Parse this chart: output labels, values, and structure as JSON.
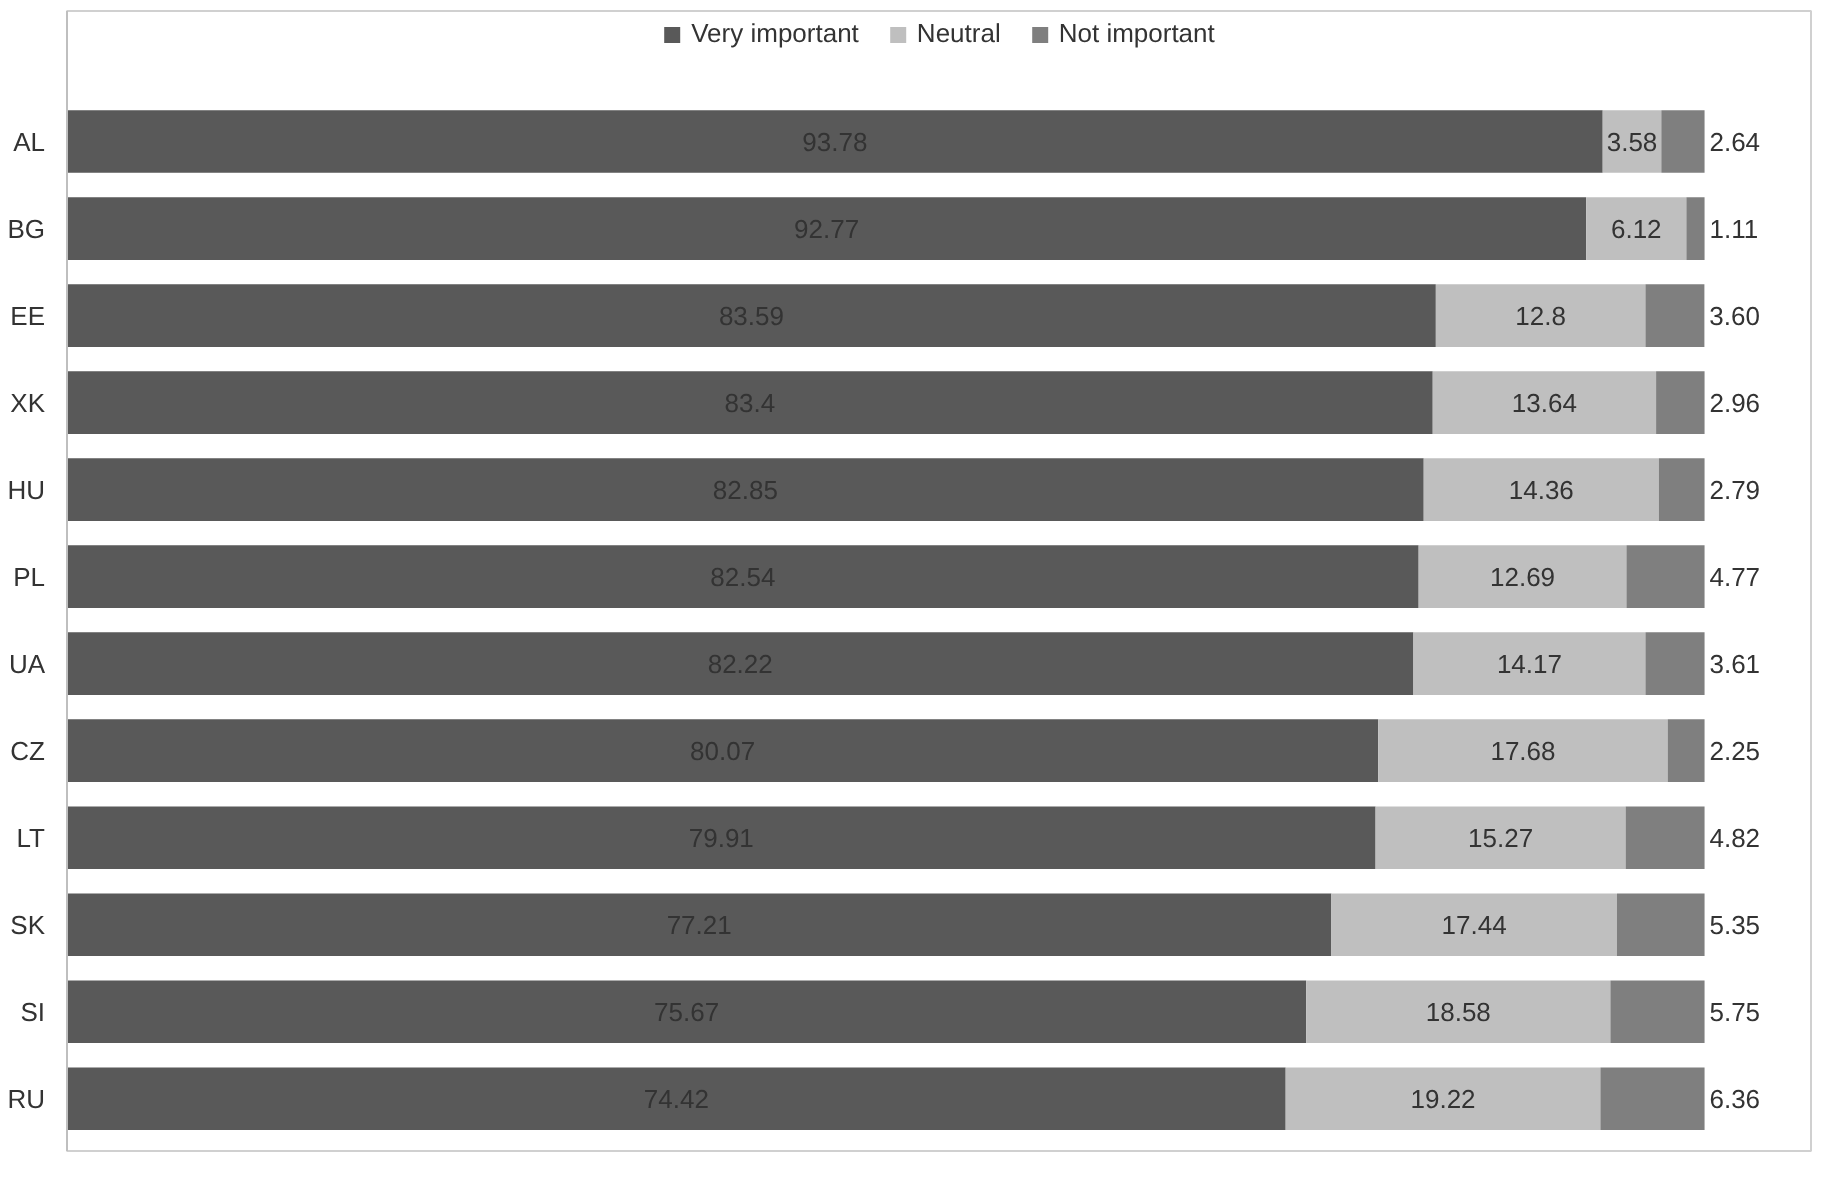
{
  "chart_data": {
    "type": "bar",
    "orientation": "horizontal",
    "stacked": true,
    "legend": "top",
    "grid": false,
    "categories": [
      "AL",
      "BG",
      "EE",
      "XK",
      "HU",
      "PL",
      "UA",
      "CZ",
      "LT",
      "SK",
      "SI",
      "RU"
    ],
    "series": [
      {
        "name": "Very important",
        "color": "#595959",
        "values": [
          93.78,
          92.77,
          83.59,
          83.4,
          82.85,
          82.54,
          82.22,
          80.07,
          79.91,
          77.21,
          75.67,
          74.42
        ],
        "value_labels": [
          "93.78",
          "92.77",
          "83.59",
          "83.4",
          "82.85",
          "82.54",
          "82.22",
          "80.07",
          "79.91",
          "77.21",
          "75.67",
          "74.42"
        ]
      },
      {
        "name": "Neutral",
        "color": "#bfbfbf",
        "values": [
          3.58,
          6.12,
          12.8,
          13.64,
          14.36,
          12.69,
          14.17,
          17.68,
          15.27,
          17.44,
          18.58,
          19.22
        ],
        "value_labels": [
          "3.58",
          "6.12",
          "12.8",
          "13.64",
          "14.36",
          "12.69",
          "14.17",
          "17.68",
          "15.27",
          "17.44",
          "18.58",
          "19.22"
        ]
      },
      {
        "name": "Not important",
        "color": "#7f7f7f",
        "values": [
          2.64,
          1.11,
          3.6,
          2.96,
          2.79,
          4.77,
          3.61,
          2.25,
          4.82,
          5.35,
          5.75,
          6.36
        ],
        "value_labels": [
          "2.64",
          "1.11",
          "3.60",
          "2.96",
          "2.79",
          "4.77",
          "3.61",
          "2.25",
          "4.82",
          "5.35",
          "5.75",
          "6.36"
        ]
      }
    ]
  }
}
